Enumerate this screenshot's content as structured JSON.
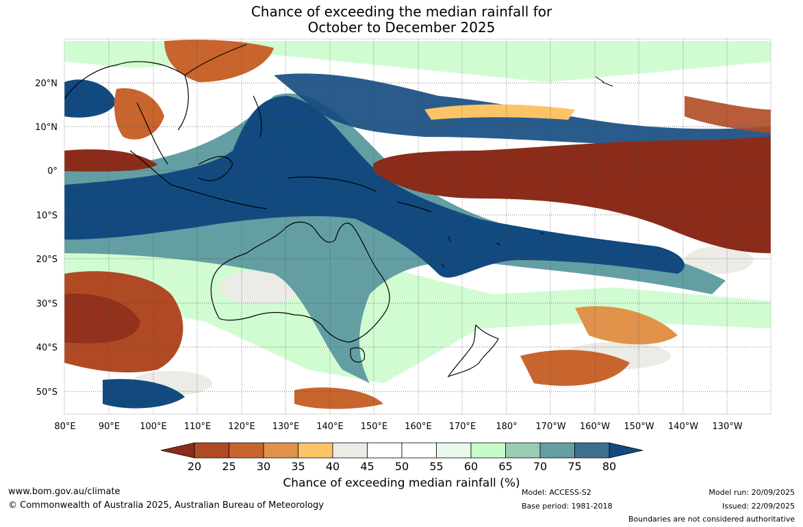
{
  "title": {
    "line1": "Chance of exceeding the median rainfall for",
    "line2": "October to December 2025"
  },
  "map": {
    "lat_labels": [
      "20°N",
      "10°N",
      "0°",
      "10°S",
      "20°S",
      "30°S",
      "40°S",
      "50°S"
    ],
    "lon_labels": [
      "80°E",
      "90°E",
      "100°E",
      "110°E",
      "120°E",
      "130°E",
      "140°E",
      "150°E",
      "160°E",
      "170°E",
      "180°",
      "170°W",
      "160°W",
      "150°W",
      "140°W",
      "130°W"
    ],
    "regions": [
      {
        "name": "equatorial-pacific-dry",
        "color": "#8b2c1a"
      },
      {
        "name": "maritime-continent-wet",
        "color": "#124a80"
      },
      {
        "name": "indian-ocean-wet",
        "color": "#124a80"
      },
      {
        "name": "southern-indian-dry",
        "color": "#b34a22"
      },
      {
        "name": "north-pacific-dry",
        "color": "#c8642e"
      }
    ]
  },
  "colorbar": {
    "title": "Chance of exceeding median rainfall (%)",
    "ticks": [
      "20",
      "25",
      "30",
      "35",
      "40",
      "45",
      "50",
      "55",
      "60",
      "65",
      "70",
      "75",
      "80"
    ],
    "colors": [
      "#8b2c1a",
      "#b04a24",
      "#c8642e",
      "#e0924a",
      "#fdc467",
      "#edebe6",
      "#ffffff",
      "#ffffff",
      "#e8f8ea",
      "#c9fbca",
      "#99ccb3",
      "#639fa2",
      "#3d718f",
      "#124a80"
    ]
  },
  "footer": {
    "website": "www.bom.gov.au/climate",
    "copyright": "© Commonwealth of Australia 2025, Australian Bureau of Meteorology",
    "model": "Model: ACCESS-S2",
    "base_period": "Base period: 1981-2018",
    "model_run": "Model run: 20/09/2025",
    "issued": "Issued: 22/09/2025",
    "disclaimer": "Boundaries are not considered authoritative"
  }
}
